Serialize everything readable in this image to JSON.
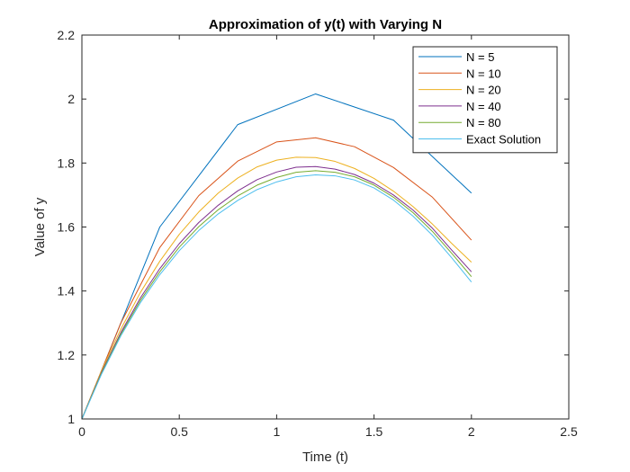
{
  "chart_data": {
    "type": "line",
    "title": "Approximation of y(t) with Varying N",
    "xlabel": "Time (t)",
    "ylabel": "Value of y",
    "xlim": [
      0,
      2.5
    ],
    "ylim": [
      1,
      2.2
    ],
    "xticks": [
      0,
      0.5,
      1,
      1.5,
      2,
      2.5
    ],
    "xtick_labels": [
      "0",
      "0.5",
      "1",
      "1.5",
      "2",
      "2.5"
    ],
    "yticks": [
      1,
      1.2,
      1.4,
      1.6,
      1.8,
      2,
      2.2
    ],
    "ytick_labels": [
      "1",
      "1.2",
      "1.4",
      "1.6",
      "1.8",
      "2",
      "2.2"
    ],
    "grid": false,
    "legend_position": "top-right",
    "series": [
      {
        "name": "N = 5",
        "color": "#0072BD",
        "x": [
          0,
          0.4,
          0.8,
          1.2,
          1.6,
          2.0
        ],
        "y": [
          1.0,
          1.6,
          1.92,
          2.016,
          1.934,
          1.706
        ]
      },
      {
        "name": "N = 10",
        "color": "#D95319",
        "x": [
          0,
          0.2,
          0.4,
          0.6,
          0.8,
          1.0,
          1.2,
          1.4,
          1.6,
          1.8,
          2.0
        ],
        "y": [
          1.0,
          1.3,
          1.536,
          1.698,
          1.806,
          1.866,
          1.879,
          1.851,
          1.786,
          1.693,
          1.559
        ]
      },
      {
        "name": "N = 20",
        "color": "#EDB120",
        "x": [
          0,
          0.1,
          0.2,
          0.3,
          0.4,
          0.5,
          0.6,
          0.7,
          0.8,
          0.9,
          1.0,
          1.1,
          1.2,
          1.3,
          1.4,
          1.5,
          1.6,
          1.7,
          1.8,
          1.9,
          2.0
        ],
        "y": [
          1.0,
          1.15,
          1.281,
          1.395,
          1.493,
          1.577,
          1.647,
          1.706,
          1.753,
          1.788,
          1.809,
          1.818,
          1.817,
          1.805,
          1.783,
          1.752,
          1.712,
          1.664,
          1.609,
          1.548,
          1.49
        ]
      },
      {
        "name": "N = 40",
        "color": "#7E2F8E",
        "x": [
          0,
          0.1,
          0.2,
          0.3,
          0.4,
          0.5,
          0.6,
          0.7,
          0.8,
          0.9,
          1.0,
          1.1,
          1.2,
          1.3,
          1.4,
          1.5,
          1.6,
          1.7,
          1.8,
          1.9,
          2.0
        ],
        "y": [
          1.0,
          1.145,
          1.27,
          1.378,
          1.47,
          1.548,
          1.614,
          1.668,
          1.713,
          1.748,
          1.772,
          1.787,
          1.789,
          1.781,
          1.764,
          1.737,
          1.7,
          1.653,
          1.596,
          1.527,
          1.46
        ]
      },
      {
        "name": "N = 80",
        "color": "#77AC30",
        "x": [
          0,
          0.1,
          0.2,
          0.3,
          0.4,
          0.5,
          0.6,
          0.7,
          0.8,
          0.9,
          1.0,
          1.1,
          1.2,
          1.3,
          1.4,
          1.5,
          1.6,
          1.7,
          1.8,
          1.9,
          2.0
        ],
        "y": [
          1.0,
          1.142,
          1.265,
          1.37,
          1.46,
          1.537,
          1.601,
          1.654,
          1.697,
          1.731,
          1.755,
          1.771,
          1.776,
          1.771,
          1.757,
          1.731,
          1.693,
          1.645,
          1.586,
          1.517,
          1.445
        ]
      },
      {
        "name": "Exact Solution",
        "color": "#4DBEEE",
        "x": [
          0,
          0.1,
          0.2,
          0.3,
          0.4,
          0.5,
          0.6,
          0.7,
          0.8,
          0.9,
          1.0,
          1.1,
          1.2,
          1.3,
          1.4,
          1.5,
          1.6,
          1.7,
          1.8,
          1.9,
          2.0
        ],
        "y": [
          1.0,
          1.139,
          1.26,
          1.363,
          1.451,
          1.526,
          1.589,
          1.641,
          1.683,
          1.717,
          1.741,
          1.757,
          1.763,
          1.76,
          1.747,
          1.722,
          1.684,
          1.634,
          1.574,
          1.503,
          1.428
        ]
      }
    ]
  }
}
